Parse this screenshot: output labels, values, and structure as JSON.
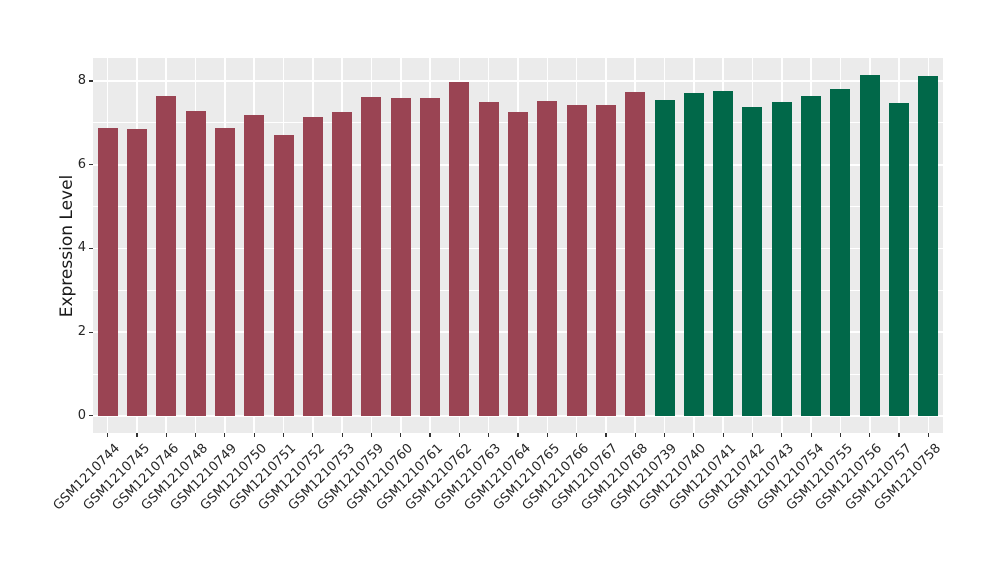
{
  "chart_data": {
    "type": "bar",
    "title": "",
    "xlabel": "",
    "ylabel": "Expression Level",
    "ylim": [
      -0.41,
      8.55
    ],
    "yticks_major": [
      0,
      2,
      4,
      6,
      8
    ],
    "yticks_minor": [
      1,
      3,
      5,
      7
    ],
    "grid": "on",
    "legend": "none",
    "panel_background": "#EBEBEB",
    "gridline_color": "#FFFFFF",
    "text_color": "#262626",
    "tick_color": "#333333",
    "palette": {
      "group1": "#9A4453",
      "group2": "#016849"
    },
    "categories": [
      "GSM1210744",
      "GSM1210745",
      "GSM1210746",
      "GSM1210748",
      "GSM1210749",
      "GSM1210750",
      "GSM1210751",
      "GSM1210752",
      "GSM1210753",
      "GSM1210759",
      "GSM1210760",
      "GSM1210761",
      "GSM1210762",
      "GSM1210763",
      "GSM1210764",
      "GSM1210765",
      "GSM1210766",
      "GSM1210767",
      "GSM1210768",
      "GSM1210739",
      "GSM1210740",
      "GSM1210741",
      "GSM1210742",
      "GSM1210743",
      "GSM1210754",
      "GSM1210755",
      "GSM1210756",
      "GSM1210757",
      "GSM1210758"
    ],
    "values": [
      6.88,
      6.85,
      7.64,
      7.28,
      6.87,
      7.18,
      6.71,
      7.13,
      7.27,
      7.63,
      7.6,
      7.6,
      7.97,
      7.5,
      7.26,
      7.53,
      7.43,
      7.42,
      7.73,
      7.54,
      7.72,
      7.75,
      7.37,
      7.5,
      7.65,
      7.81,
      8.15,
      7.47,
      8.13
    ],
    "groups": [
      "group1",
      "group1",
      "group1",
      "group1",
      "group1",
      "group1",
      "group1",
      "group1",
      "group1",
      "group1",
      "group1",
      "group1",
      "group1",
      "group1",
      "group1",
      "group1",
      "group1",
      "group1",
      "group1",
      "group2",
      "group2",
      "group2",
      "group2",
      "group2",
      "group2",
      "group2",
      "group2",
      "group2",
      "group2"
    ]
  }
}
